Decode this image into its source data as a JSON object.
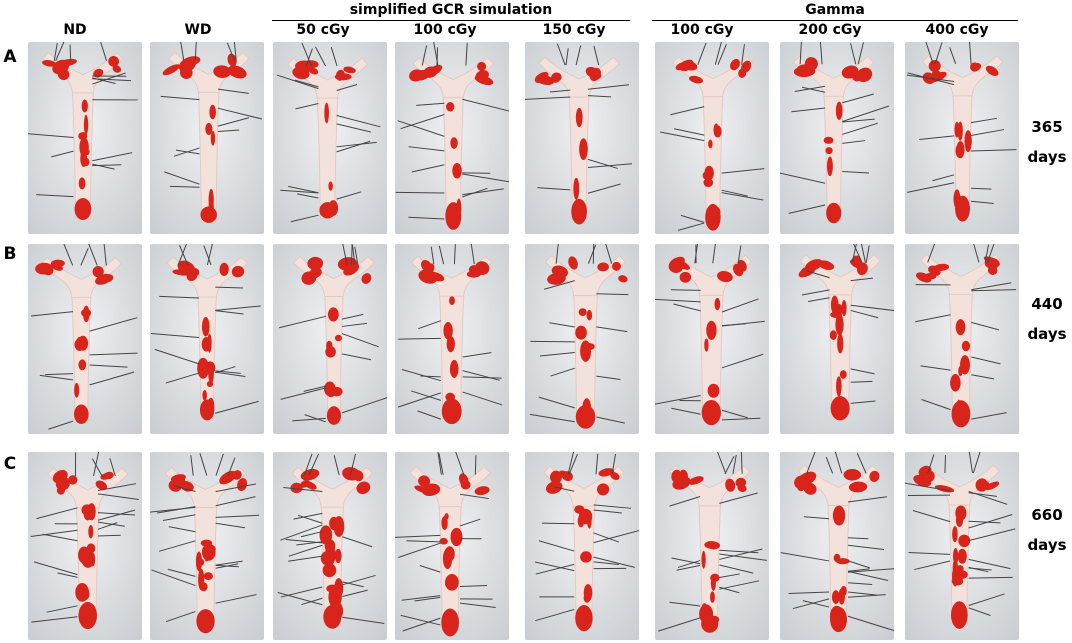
{
  "group_labels": {
    "simplified_gcr": "simplified GCR simulation",
    "gamma": "Gamma"
  },
  "column_labels": [
    "ND",
    "WD",
    "50 cGy",
    "100 cGy",
    "150 cGy",
    "100 cGy",
    "200 cGy",
    "400 cGy"
  ],
  "rows": [
    {
      "letter": "A",
      "days_number": "365",
      "days_unit": "days"
    },
    {
      "letter": "B",
      "days_number": "440",
      "days_unit": "days"
    },
    {
      "letter": "C",
      "days_number": "660",
      "days_unit": "days"
    }
  ],
  "colors": {
    "background_light": "#eef0f2",
    "background_shadow": "#c9ccd0",
    "aorta_tissue": "#f3e2dc",
    "lesion_red": "#d8241a",
    "pin_gray": "#444444"
  }
}
